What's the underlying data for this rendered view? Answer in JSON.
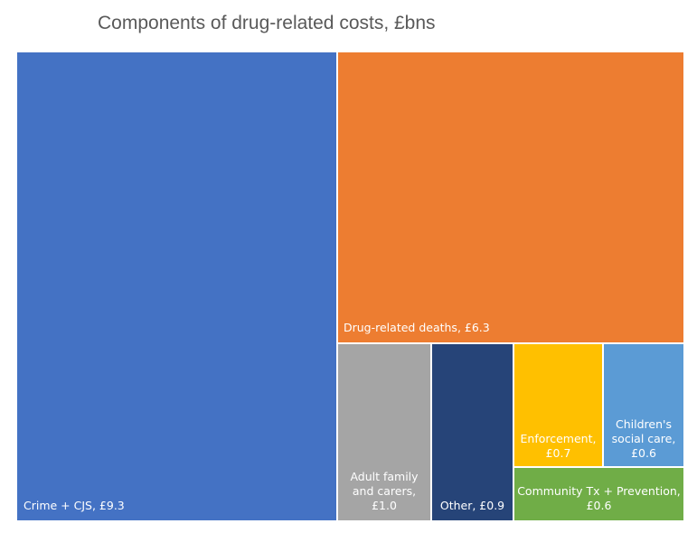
{
  "chart_data": {
    "type": "treemap",
    "title": "Components of drug-related costs, £bns",
    "items": [
      {
        "name": "Crime + CJS",
        "value": 9.3,
        "label_lines": [
          "Crime + CJS, £9.3"
        ],
        "color": "#4472C4"
      },
      {
        "name": "Drug-related deaths",
        "value": 6.3,
        "label_lines": [
          "Drug-related deaths, £6.3"
        ],
        "color": "#ED7D31"
      },
      {
        "name": "Adult family and carers",
        "value": 1.0,
        "label_lines": [
          "Adult family",
          "and carers,",
          "£1.0"
        ],
        "color": "#A5A5A5"
      },
      {
        "name": "Other",
        "value": 0.9,
        "label_lines": [
          "Other, £0.9"
        ],
        "color": "#264478"
      },
      {
        "name": "Enforcement",
        "value": 0.7,
        "label_lines": [
          "Enforcement,",
          "£0.7"
        ],
        "color": "#FFC000"
      },
      {
        "name": "Children's social care",
        "value": 0.6,
        "label_lines": [
          "Children's",
          "social care,",
          "£0.6"
        ],
        "color": "#5B9BD5"
      },
      {
        "name": "Community Tx + Prevention",
        "value": 0.6,
        "label_lines": [
          "Community Tx + Prevention,",
          "£0.6"
        ],
        "color": "#70AD47"
      }
    ]
  }
}
